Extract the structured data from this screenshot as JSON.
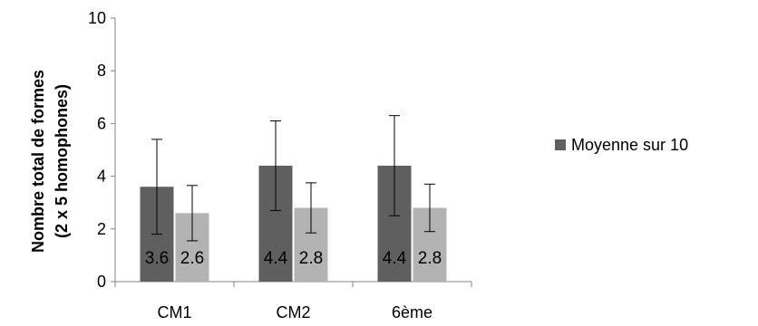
{
  "chart_data": {
    "type": "bar",
    "title": "",
    "xlabel": "",
    "ylabel_lines": [
      "Nombre total de formes",
      "(2 x 5 homophones)"
    ],
    "categories": [
      "CM1",
      "CM2",
      "6ème"
    ],
    "ylim": [
      0,
      10
    ],
    "yticks": [
      0,
      2,
      4,
      6,
      8,
      10
    ],
    "grid": false,
    "legend_position": "right",
    "series": [
      {
        "name": "Moyenne sur 10",
        "color": "#5f5f5f",
        "values": [
          3.6,
          4.4,
          4.4
        ],
        "errors": [
          1.8,
          1.7,
          1.9
        ],
        "labels": [
          "3.6",
          "4.4",
          "4.4"
        ]
      },
      {
        "color": "#b3b3b3",
        "values": [
          2.6,
          2.8,
          2.8
        ],
        "errors": [
          1.05,
          0.95,
          0.9
        ],
        "labels": [
          "2.6",
          "2.8",
          "2.8"
        ]
      }
    ]
  }
}
